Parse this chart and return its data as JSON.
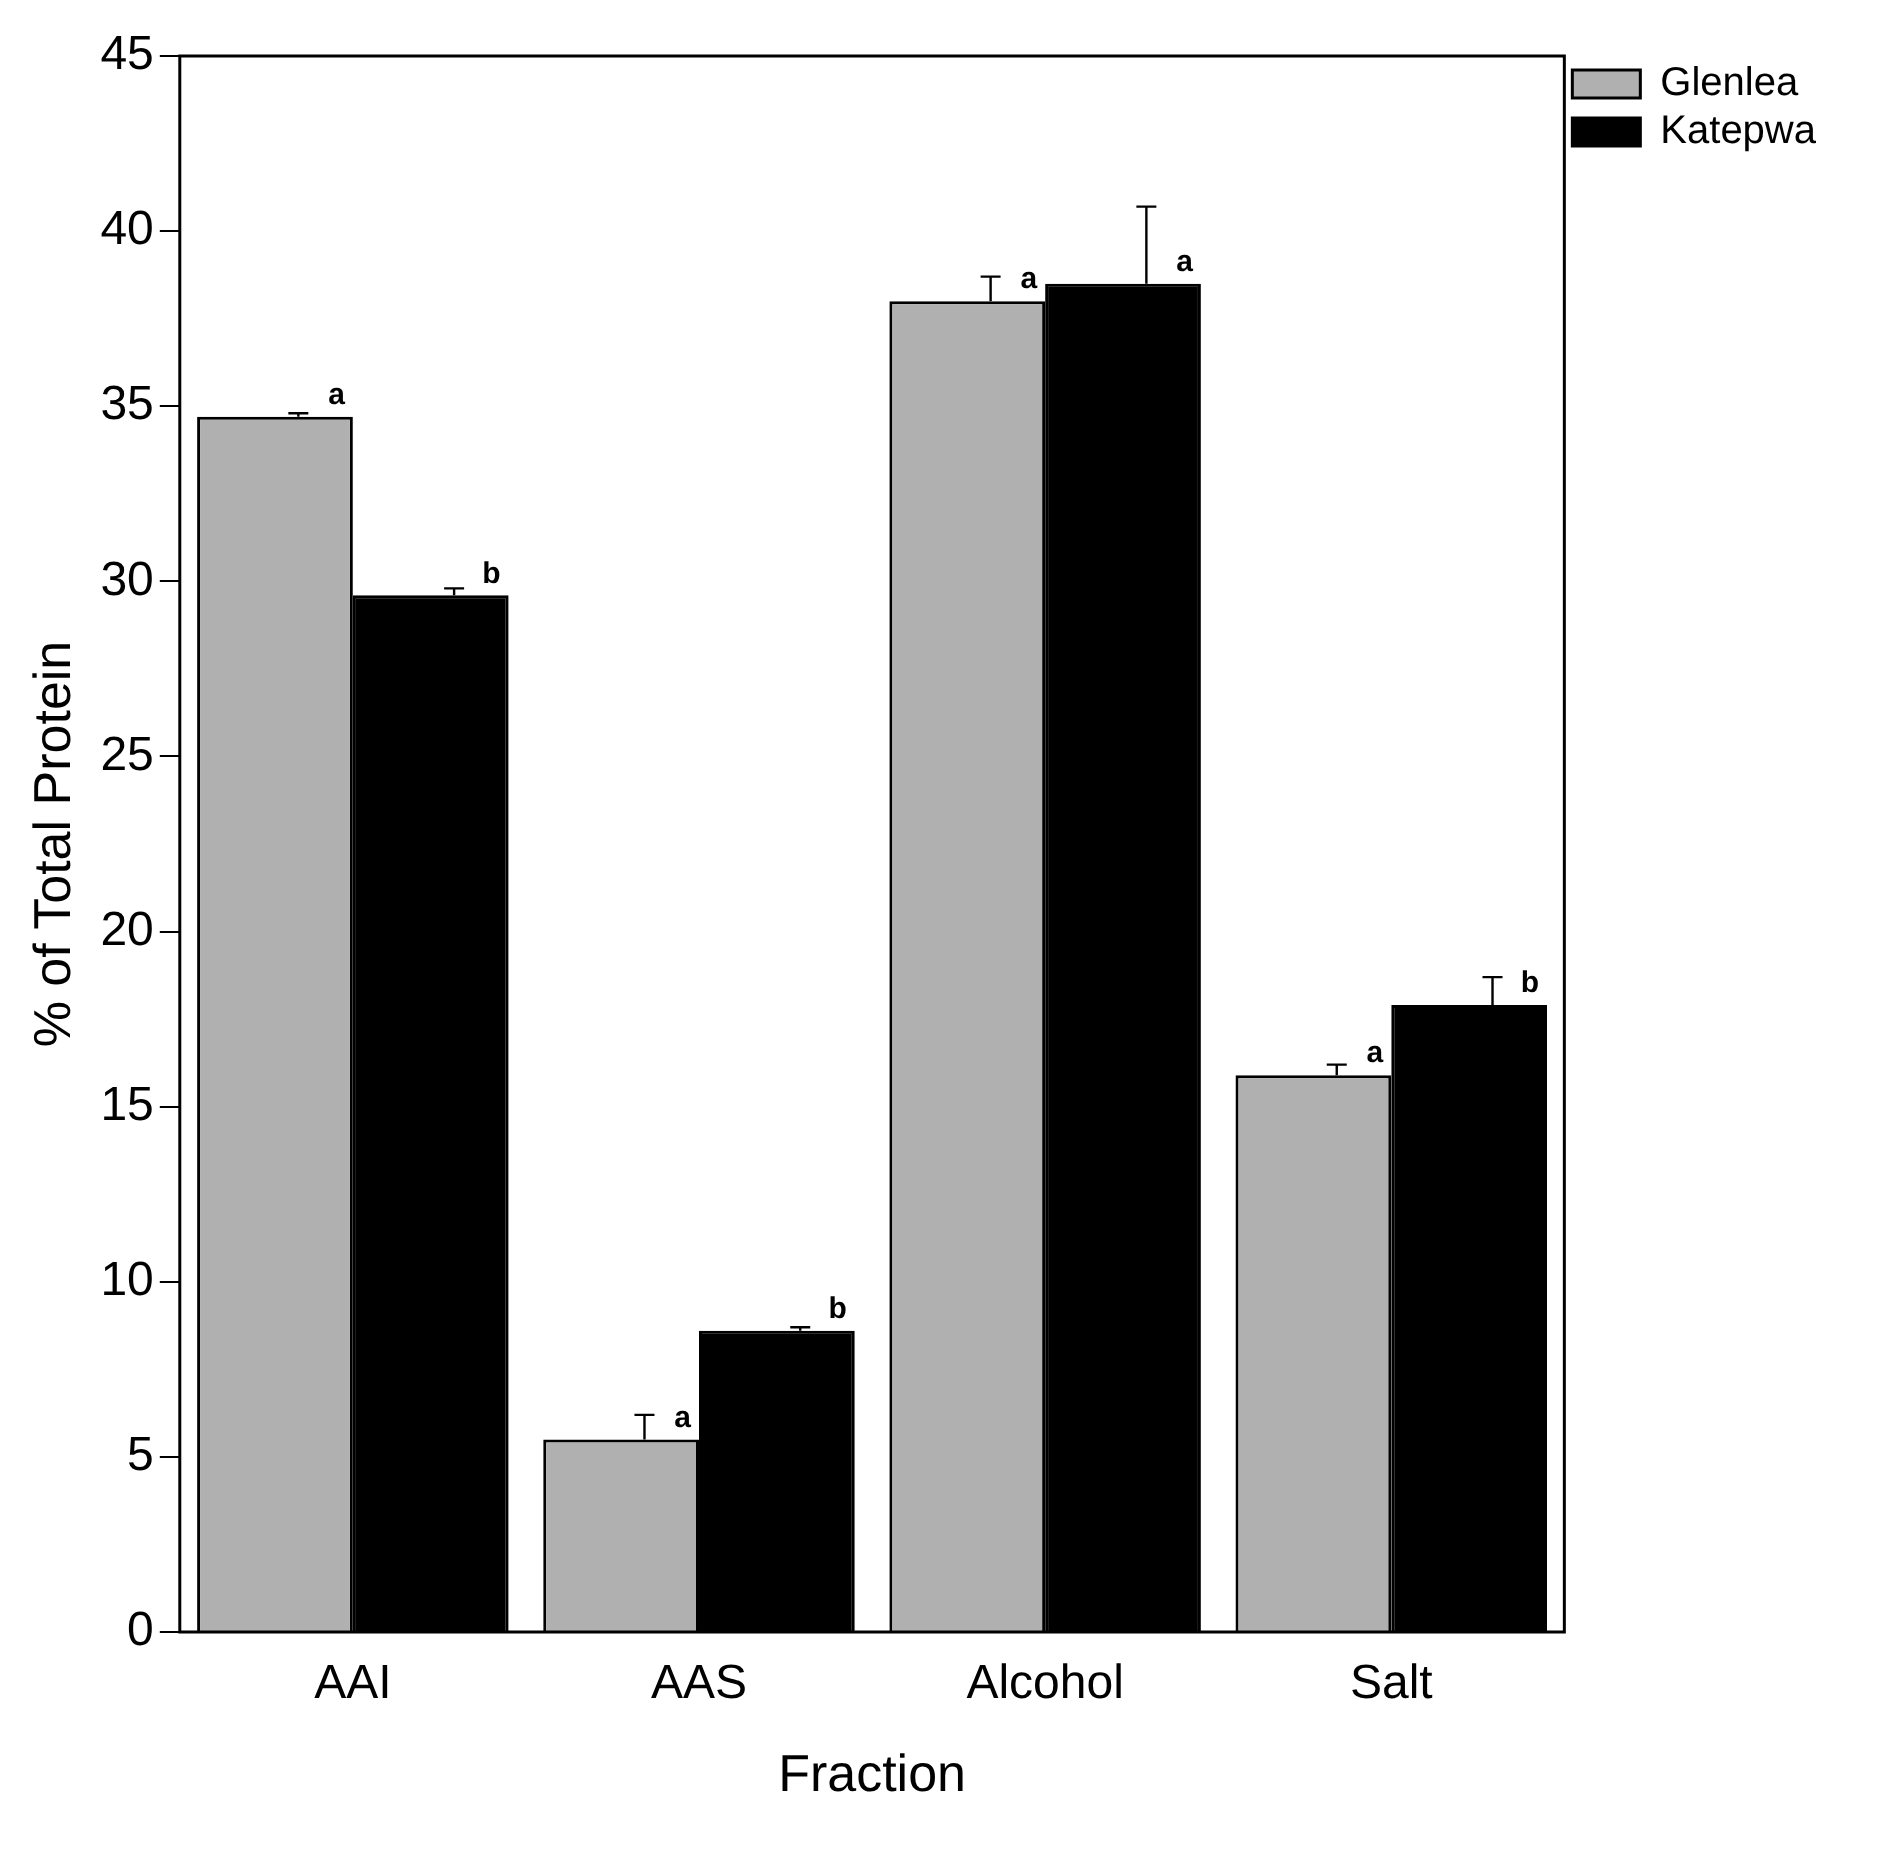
{
  "chart_data": {
    "type": "bar",
    "xlabel": "Fraction",
    "ylabel": "% of Total Protein",
    "categories": [
      "AAI",
      "AAS",
      "Alcohol",
      "Salt"
    ],
    "series": [
      {
        "name": "Glenlea",
        "color": "#b0b0b0",
        "values": [
          34.7,
          5.5,
          38.0,
          15.9
        ],
        "errors": [
          0.1,
          0.7,
          0.7,
          0.3
        ],
        "value_labels": [
          "a",
          "a",
          "a",
          "a"
        ]
      },
      {
        "name": "Katepwa",
        "color": "#000000",
        "values": [
          29.6,
          8.6,
          38.5,
          17.9
        ],
        "errors": [
          0.2,
          0.1,
          2.2,
          0.8
        ],
        "value_labels": [
          "b",
          "b",
          "a",
          "b"
        ]
      }
    ],
    "ylim": [
      0,
      45
    ],
    "yticks": [
      0,
      5,
      10,
      15,
      20,
      25,
      30,
      35,
      40,
      45
    ],
    "grid": false,
    "legend": "top right"
  }
}
